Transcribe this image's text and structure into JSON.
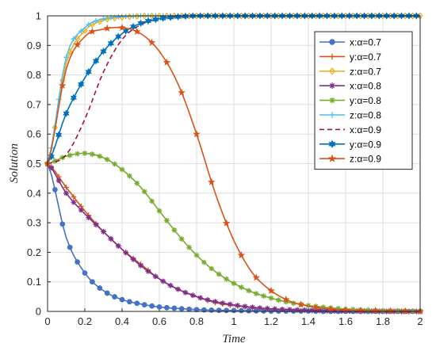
{
  "chart_data": {
    "type": "line",
    "title": "",
    "xlabel": "Time",
    "ylabel": "Solution",
    "xlim": [
      0,
      2
    ],
    "ylim": [
      0,
      1
    ],
    "xticks": [
      "0",
      "0.2",
      "0.4",
      "0.6",
      "0.8",
      "1",
      "1.2",
      "1.4",
      "1.6",
      "1.8",
      "2"
    ],
    "yticks": [
      "0",
      "0.1",
      "0.2",
      "0.3",
      "0.4",
      "0.5",
      "0.6",
      "0.7",
      "0.8",
      "0.9",
      "1"
    ],
    "grid": true,
    "legend_position": "top-right",
    "x": [
      0,
      0.1,
      0.2,
      0.3,
      0.4,
      0.5,
      0.6,
      0.7,
      0.8,
      0.9,
      1.0,
      1.1,
      1.2,
      1.3,
      1.4,
      1.5,
      1.6,
      1.7,
      1.8,
      1.9,
      2.0
    ],
    "series": [
      {
        "name": "x:α=0.7",
        "color": "#4472c4",
        "linestyle": "solid",
        "marker": "circle",
        "values": [
          0.5,
          0.25,
          0.13,
          0.07,
          0.04,
          0.025,
          0.015,
          0.01,
          0.006,
          0.004,
          0.003,
          0.002,
          0.001,
          0.001,
          0.001,
          0,
          0,
          0,
          0,
          0,
          0
        ]
      },
      {
        "name": "y:α=0.7",
        "color": "#d95319",
        "linestyle": "solid",
        "marker": "plus",
        "values": [
          0.5,
          0.42,
          0.34,
          0.27,
          0.21,
          0.16,
          0.11,
          0.075,
          0.05,
          0.03,
          0.02,
          0.013,
          0.008,
          0.005,
          0.003,
          0.002,
          0.001,
          0.001,
          0,
          0,
          0
        ]
      },
      {
        "name": "z:α=0.7",
        "color": "#edb120",
        "linestyle": "solid",
        "marker": "diamond",
        "values": [
          0.5,
          0.84,
          0.95,
          0.985,
          0.995,
          0.999,
          1,
          1,
          1,
          1,
          1,
          1,
          1,
          1,
          1,
          1,
          1,
          1,
          1,
          1,
          1
        ]
      },
      {
        "name": "x:α=0.8",
        "color": "#7e2f8e",
        "linestyle": "solid",
        "marker": "asterisk",
        "values": [
          0.5,
          0.4,
          0.33,
          0.27,
          0.21,
          0.155,
          0.11,
          0.075,
          0.05,
          0.033,
          0.022,
          0.014,
          0.009,
          0.006,
          0.004,
          0.002,
          0.001,
          0.001,
          0,
          0,
          0
        ]
      },
      {
        "name": "y:α=0.8",
        "color": "#77ac30",
        "linestyle": "solid",
        "marker": "asterisk",
        "values": [
          0.5,
          0.525,
          0.535,
          0.52,
          0.48,
          0.42,
          0.34,
          0.26,
          0.19,
          0.135,
          0.095,
          0.065,
          0.045,
          0.03,
          0.02,
          0.013,
          0.008,
          0.005,
          0.003,
          0.002,
          0.001
        ]
      },
      {
        "name": "z:α=0.8",
        "color": "#4dbeee",
        "linestyle": "solid",
        "marker": "plus",
        "values": [
          0.5,
          0.86,
          0.96,
          0.99,
          0.997,
          1,
          1,
          1,
          1,
          1,
          1,
          1,
          1,
          1,
          1,
          1,
          1,
          1,
          1,
          1,
          1
        ]
      },
      {
        "name": "x:α=0.9",
        "color": "#a2142f",
        "linestyle": "dashed",
        "marker": "none",
        "values": [
          0.5,
          0.53,
          0.65,
          0.81,
          0.92,
          0.97,
          0.99,
          0.997,
          1,
          1,
          1,
          1,
          1,
          1,
          1,
          1,
          1,
          1,
          1,
          1,
          1
        ]
      },
      {
        "name": "y:α=0.9",
        "color": "#0072bd",
        "linestyle": "solid",
        "marker": "hexagram",
        "values": [
          0.5,
          0.67,
          0.79,
          0.88,
          0.94,
          0.975,
          0.99,
          0.997,
          1,
          1,
          1,
          1,
          1,
          1,
          1,
          1,
          1,
          1,
          1,
          1,
          1
        ]
      },
      {
        "name": "z:α=0.9",
        "color": "#d95319",
        "linestyle": "solid",
        "marker": "pentagram",
        "values": [
          0.5,
          0.82,
          0.93,
          0.955,
          0.96,
          0.94,
          0.88,
          0.77,
          0.6,
          0.4,
          0.24,
          0.13,
          0.07,
          0.035,
          0.018,
          0.009,
          0.005,
          0.003,
          0.002,
          0.001,
          0
        ]
      }
    ]
  }
}
